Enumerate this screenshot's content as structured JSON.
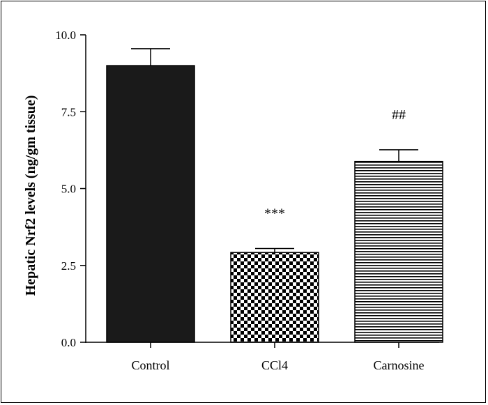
{
  "chart_data": {
    "type": "bar",
    "title": "",
    "xlabel": "",
    "ylabel": "Hepatic Nrf2 levels (ng/gm tissue)",
    "ylim": [
      0,
      10
    ],
    "yticks": [
      "0.0",
      "2.5",
      "5.0",
      "7.5",
      "10.0"
    ],
    "categories": [
      "Control",
      "CCl4",
      "Carnosine"
    ],
    "values": [
      9.0,
      2.92,
      5.88
    ],
    "errors": [
      0.55,
      0.13,
      0.38
    ],
    "annotations": [
      "",
      "***",
      "##"
    ],
    "fills": [
      "solid",
      "checkerboard",
      "horizontal-stripes"
    ],
    "grid": false,
    "colors": {
      "bar": "#1a1a1a",
      "axis": "#000000",
      "background": "#ffffff"
    }
  }
}
